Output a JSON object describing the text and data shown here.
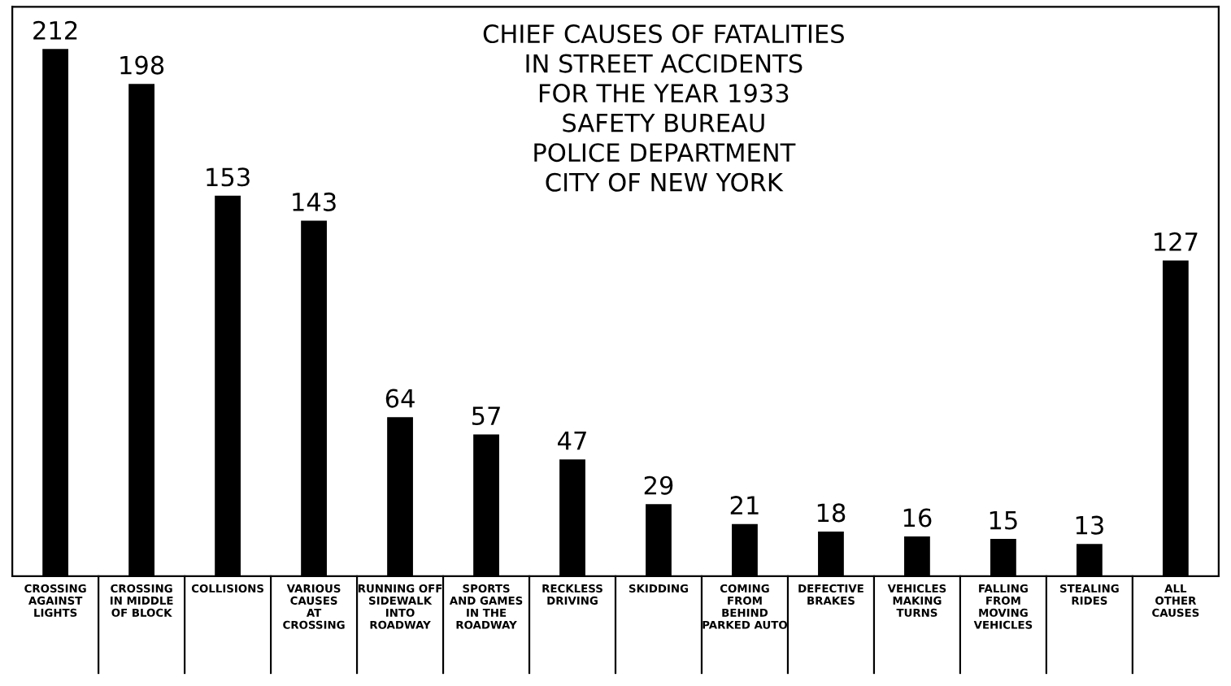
{
  "chart_data": {
    "type": "bar",
    "title": "CHIEF CAUSES OF FATALITIES\nIN STREET ACCIDENTS\nFOR THE YEAR 1933\nSAFETY BUREAU\nPOLICE DEPARTMENT\nCITY OF NEW YORK",
    "categories": [
      "CROSSING\nAGAINST\nLIGHTS",
      "CROSSING\nIN MIDDLE\nOF BLOCK",
      "COLLISIONS",
      "VARIOUS\nCAUSES\nAT\nCROSSING",
      "RUNNING OFF\nSIDEWALK\nINTO\nROADWAY",
      "SPORTS\nAND GAMES\nIN THE\nROADWAY",
      "RECKLESS\nDRIVING",
      "SKIDDING",
      "COMING\nFROM\nBEHIND\nPARKED AUTO",
      "DEFECTIVE\nBRAKES",
      "VEHICLES\nMAKING\nTURNS",
      "FALLING\nFROM\nMOVING\nVEHICLES",
      "STEALING\nRIDES",
      "ALL\nOTHER\nCAUSES"
    ],
    "values": [
      212,
      198,
      153,
      143,
      64,
      57,
      47,
      29,
      21,
      18,
      16,
      15,
      13,
      127
    ],
    "color": "#000000",
    "data_labels": true,
    "tick_labels": "x",
    "grid": false,
    "legend": false
  }
}
